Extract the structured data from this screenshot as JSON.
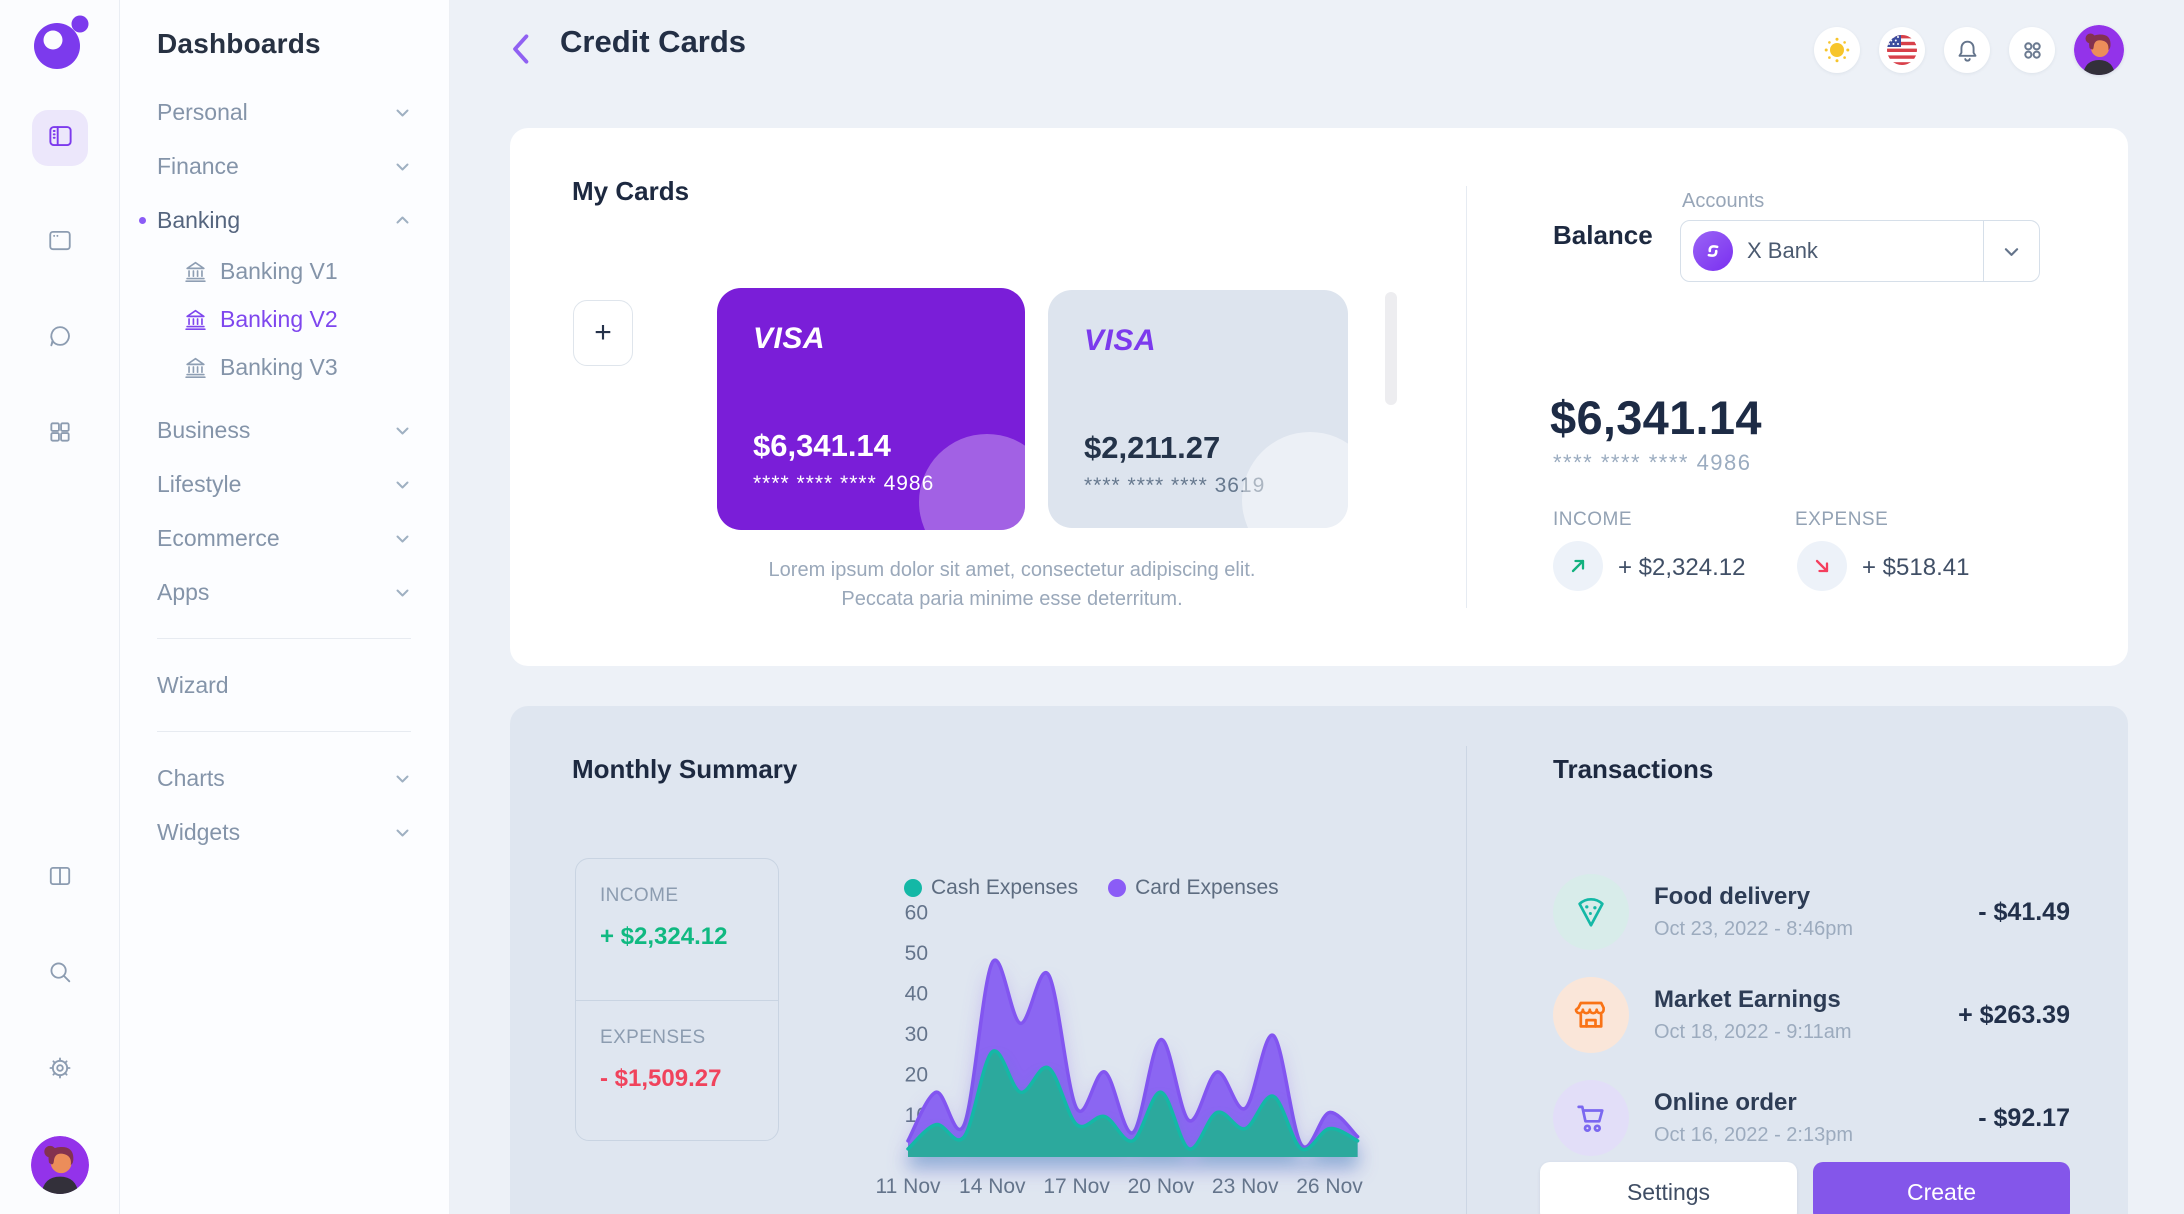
{
  "colors": {
    "accent": "#7c3aed",
    "card_purple": "#7a1ed8",
    "positive_green": "#10b981",
    "negative_red": "#f0435c",
    "chart_card": "#8b66f2",
    "chart_cash": "#2ca99d"
  },
  "sidebar": {
    "title": "Dashboards",
    "sections": [
      {
        "label": "Personal"
      },
      {
        "label": "Finance"
      },
      {
        "label": "Banking",
        "active": true
      },
      {
        "label": "Business"
      },
      {
        "label": "Lifestyle"
      },
      {
        "label": "Ecommerce"
      },
      {
        "label": "Apps"
      },
      {
        "label": "Wizard"
      },
      {
        "label": "Charts"
      },
      {
        "label": "Widgets"
      }
    ],
    "banking_children": [
      {
        "label": "Banking V1",
        "icon": "bank-icon"
      },
      {
        "label": "Banking V2",
        "icon": "bank-icon",
        "active": true
      },
      {
        "label": "Banking V3",
        "icon": "bank-icon"
      }
    ]
  },
  "header": {
    "title": "Credit Cards",
    "icons": [
      "theme-sun-icon",
      "language-us-flag-icon",
      "notifications-bell-icon",
      "apps-grid-icon",
      "profile-avatar"
    ]
  },
  "my_cards": {
    "title": "My Cards",
    "add_label": "+",
    "cards": [
      {
        "brand": "VISA",
        "amount": "$6,341.14",
        "masked": "**** **** **** 4986",
        "style": "purple"
      },
      {
        "brand": "VISA",
        "amount": "$2,211.27",
        "masked": "**** **** **** 3619",
        "style": "light"
      }
    ],
    "description_line1": "Lorem ipsum dolor sit amet, consectetur adipiscing elit.",
    "description_line2": "Peccata paria minime esse deterritum."
  },
  "balance": {
    "title": "Balance",
    "accounts_label": "Accounts",
    "selected_account": "X Bank",
    "amount": "$6,341.14",
    "masked": "**** **** **** 4986",
    "income_label": "INCOME",
    "income_value": "+ $2,324.12",
    "expense_label": "EXPENSE",
    "expense_value": "+ $518.41"
  },
  "monthly_summary": {
    "title": "Monthly Summary",
    "income_label": "INCOME",
    "income_value": "+ $2,324.12",
    "expenses_label": "EXPENSES",
    "expenses_value": "- $1,509.27"
  },
  "chart_data": {
    "type": "area",
    "x_labels": [
      "11 Nov",
      "14 Nov",
      "17 Nov",
      "20 Nov",
      "23 Nov",
      "26 Nov"
    ],
    "x_days": [
      11,
      12,
      13,
      14,
      15,
      16,
      17,
      18,
      19,
      20,
      21,
      22,
      23,
      24,
      25,
      26,
      27
    ],
    "yticks": [
      10,
      20,
      30,
      40,
      50,
      60
    ],
    "ylim": [
      0,
      60
    ],
    "grid": false,
    "legend_position": "top",
    "series": [
      {
        "name": "Card Expenses",
        "color": "#8b5cf6",
        "fill": "#8b66f2",
        "stroke": "#8255f0",
        "values": [
          4,
          16,
          8,
          48,
          33,
          45,
          12,
          21,
          6,
          29,
          9,
          21,
          12,
          30,
          3,
          11,
          5
        ]
      },
      {
        "name": "Cash Expenses",
        "color": "#14b8a6",
        "fill": "#2ca99d",
        "stroke": "#14b8a6",
        "values": [
          2,
          8,
          5,
          26,
          16,
          22,
          8,
          10,
          4,
          16,
          2,
          11,
          7,
          15,
          2,
          7,
          4
        ]
      }
    ]
  },
  "transactions": {
    "title": "Transactions",
    "items": [
      {
        "name": "Food delivery",
        "date": "Oct 23, 2022 - 8:46pm",
        "amount": "- $41.49",
        "icon": "pizza-icon"
      },
      {
        "name": "Market Earnings",
        "date": "Oct 18, 2022 - 9:11am",
        "amount": "+ $263.39",
        "icon": "store-icon"
      },
      {
        "name": "Online order",
        "date": "Oct 16, 2022 - 2:13pm",
        "amount": "- $92.17",
        "icon": "cart-icon"
      }
    ],
    "settings_label": "Settings",
    "create_label": "Create"
  }
}
